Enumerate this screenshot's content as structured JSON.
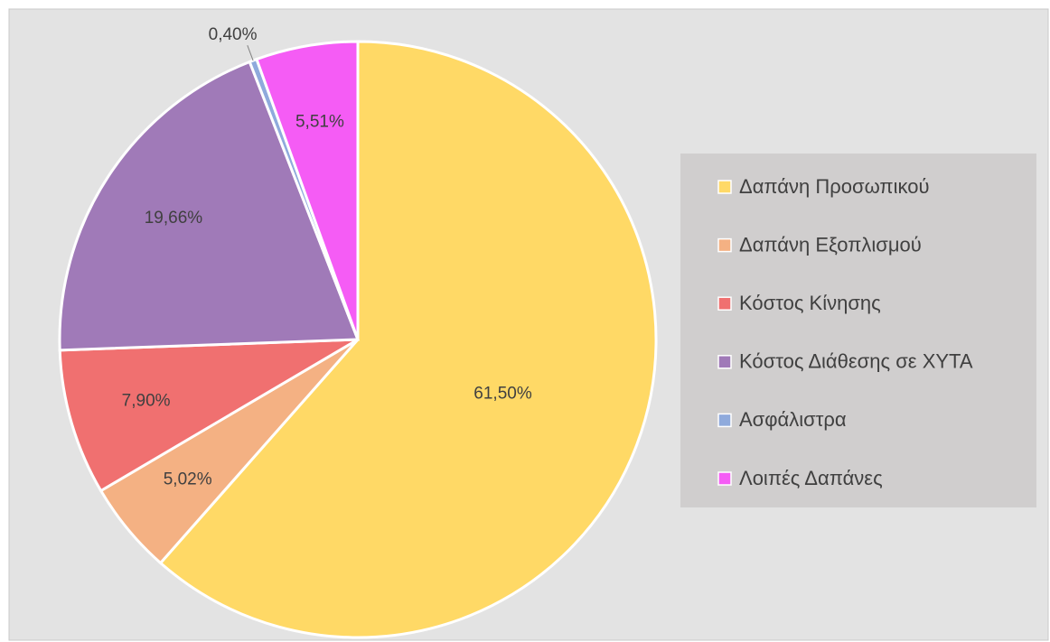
{
  "chart_data": {
    "type": "pie",
    "categories": [
      "Δαπάνη Προσωπικού",
      "Δαπάνη Εξοπλισμού",
      "Κόστος Κίνησης",
      "Κόστος Διάθεσης σε ΧΥΤΑ",
      "Ασφάλιστρα",
      "Λοιπές Δαπάνες"
    ],
    "values": [
      61.5,
      5.02,
      7.9,
      19.66,
      0.4,
      5.51
    ],
    "value_labels": [
      "61,50%",
      "5,02%",
      "7,90%",
      "19,66%",
      "0,40%",
      "5,51%"
    ],
    "colors": [
      "#ffd966",
      "#f4b183",
      "#f07070",
      "#a07ab8",
      "#8faadc",
      "#f55cf5"
    ],
    "legend": "right"
  }
}
